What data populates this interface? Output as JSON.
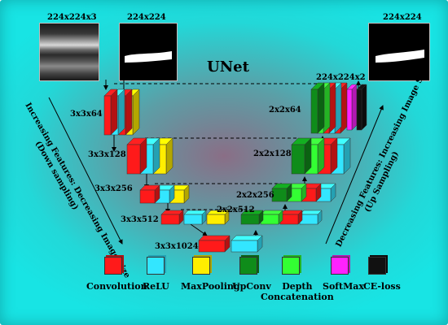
{
  "title": "UNet",
  "inputs": {
    "image_label": "224x224x3",
    "mask_label": "224x224",
    "output_label": "224x224"
  },
  "encoder": {
    "levels": [
      "3x3x64",
      "3x3x128",
      "3x3x256",
      "3x3x512",
      "3x3x1024"
    ]
  },
  "decoder": {
    "levels": [
      "224x224x2",
      "2x2x64",
      "2x2x128",
      "2x2x256",
      "2x2x512"
    ]
  },
  "side_left": {
    "line1": "Increasing Features: Decreasing Image Size",
    "line2": "(Down sampling)"
  },
  "side_right": {
    "line1": "Decreasing Features: Increasing Image Size",
    "line2": "(Up Sampling)"
  },
  "legend": [
    {
      "label": "Convolution",
      "color": "#ff1a1a"
    },
    {
      "label": "ReLU",
      "color": "#33e6ff"
    },
    {
      "label": "MaxPooling",
      "color": "#ffee00"
    },
    {
      "label": "UpConv",
      "color": "#0f8c1a"
    },
    {
      "label": "Depth\nConcatenation",
      "color": "#33ff33"
    },
    {
      "label": "SoftMax",
      "color": "#ff22ff"
    },
    {
      "label": "CE-loss",
      "color": "#111111"
    }
  ],
  "colors": {
    "conv": "#ff1a1a",
    "relu": "#33e6ff",
    "pool": "#ffee00",
    "upconv": "#0f8c1a",
    "concat": "#33ff33",
    "softmax": "#ff22ff",
    "celoss": "#111111"
  }
}
